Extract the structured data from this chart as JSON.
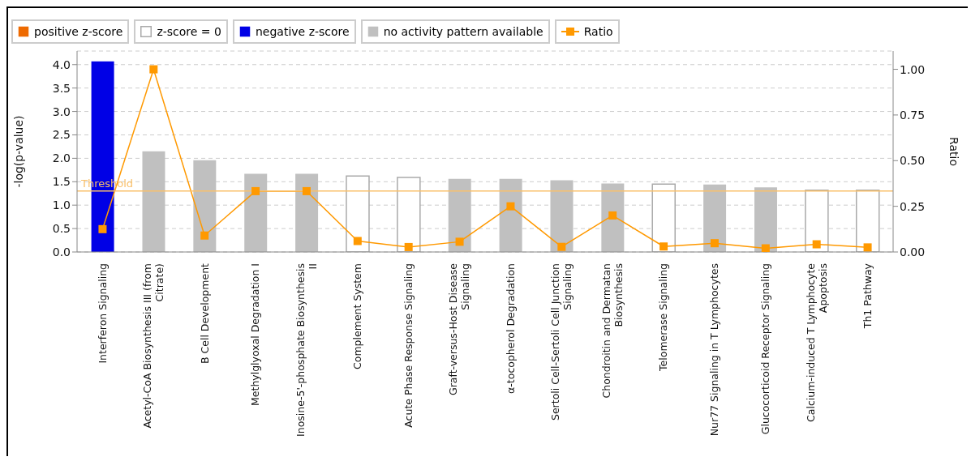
{
  "chart_data": {
    "type": "bar",
    "stacked": true,
    "categories": [
      "Interferon Signaling",
      "Acetyl-CoA Biosynthesis III (from Citrate)",
      "B Cell Development",
      "Methylglyoxal Degradation I",
      "Inosine-5'-phosphate Biosynthesis II",
      "Complement System",
      "Acute Phase Response Signaling",
      "Graft-versus-Host Disease Signaling",
      "α-tocopherol Degradation",
      "Sertoli Cell-Sertoli Cell Junction Signaling",
      "Chondroitin and Dermatan Biosynthesis",
      "Telomerase Signaling",
      "Nur77 Signaling in T Lymphocytes",
      "Glucocorticoid Receptor Signaling",
      "Calcium-induced T Lymphocyte Apoptosis",
      "Th1 Pathway"
    ],
    "series": [
      {
        "name": "positive z-score",
        "color": "#ee6a00",
        "values": [
          null,
          null,
          null,
          null,
          null,
          null,
          null,
          null,
          null,
          null,
          null,
          null,
          null,
          null,
          null,
          null
        ]
      },
      {
        "name": "z-score = 0",
        "color": "#ffffff",
        "values": [
          null,
          null,
          null,
          null,
          null,
          1.62,
          1.59,
          null,
          null,
          null,
          null,
          1.45,
          null,
          null,
          1.32,
          1.32
        ]
      },
      {
        "name": "negative z-score",
        "color": "#0000e6",
        "values": [
          4.07,
          null,
          null,
          null,
          null,
          null,
          null,
          null,
          null,
          null,
          null,
          null,
          null,
          null,
          null,
          null
        ]
      },
      {
        "name": "no activity pattern available",
        "color": "#c0c0c0",
        "values": [
          null,
          2.15,
          1.96,
          1.67,
          1.67,
          null,
          null,
          1.56,
          1.56,
          1.53,
          1.46,
          null,
          1.44,
          1.38,
          null,
          null
        ]
      },
      {
        "name": "Ratio",
        "type": "line",
        "axis": "y2",
        "color": "#ff9900",
        "marker": "square",
        "values": [
          0.125,
          1.0,
          0.09,
          0.333,
          0.333,
          0.06,
          0.027,
          0.056,
          0.25,
          0.028,
          0.2,
          0.03,
          0.048,
          0.02,
          0.042,
          0.025
        ]
      }
    ],
    "ylabel": "-log(p-value)",
    "y2label": "Ratio",
    "ylim": [
      0,
      4.29
    ],
    "yticks": [
      {
        "value": 0,
        "label": "0.0"
      },
      {
        "value": 0.5,
        "label": "0.5"
      },
      {
        "value": 1,
        "label": "1.0"
      },
      {
        "value": 1.5,
        "label": "1.5"
      },
      {
        "value": 2,
        "label": "2.0"
      },
      {
        "value": 2.5,
        "label": "2.5"
      },
      {
        "value": 3,
        "label": "3.0"
      },
      {
        "value": 3.5,
        "label": "3.5"
      },
      {
        "value": 4,
        "label": "4.0"
      }
    ],
    "y2lim": [
      0,
      1.1
    ],
    "y2ticks": [
      {
        "value": 0,
        "label": "0.00"
      },
      {
        "value": 0.25,
        "label": "0.25"
      },
      {
        "value": 0.5,
        "label": "0.50"
      },
      {
        "value": 0.75,
        "label": "0.75"
      },
      {
        "value": 1,
        "label": "1.00"
      }
    ],
    "ref_lines": [
      {
        "axis": "y",
        "value": 1.3,
        "label": "Threshold",
        "color": "#f9c06a"
      }
    ],
    "grid": "y",
    "legend": "top"
  }
}
